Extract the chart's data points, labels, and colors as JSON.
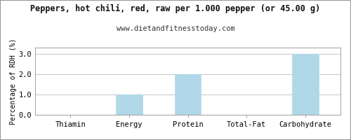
{
  "title": "Peppers, hot chili, red, raw per 1.000 pepper (or 45.00 g)",
  "subtitle": "www.dietandfitnesstoday.com",
  "categories": [
    "Thiamin",
    "Energy",
    "Protein",
    "Total-Fat",
    "Carbohydrate"
  ],
  "values": [
    0.0,
    1.0,
    2.0,
    0.0,
    3.0
  ],
  "bar_color": "#b0d8e8",
  "ylabel": "Percentage of RDH (%)",
  "ylim": [
    0,
    3.3
  ],
  "yticks": [
    0.0,
    1.0,
    2.0,
    3.0
  ],
  "background_color": "#ffffff",
  "plot_bg_color": "#ffffff",
  "title_fontsize": 8.5,
  "subtitle_fontsize": 7.5,
  "tick_fontsize": 7.5,
  "ylabel_fontsize": 7,
  "grid_color": "#cccccc",
  "border_color": "#aaaaaa",
  "outer_border_color": "#999999"
}
